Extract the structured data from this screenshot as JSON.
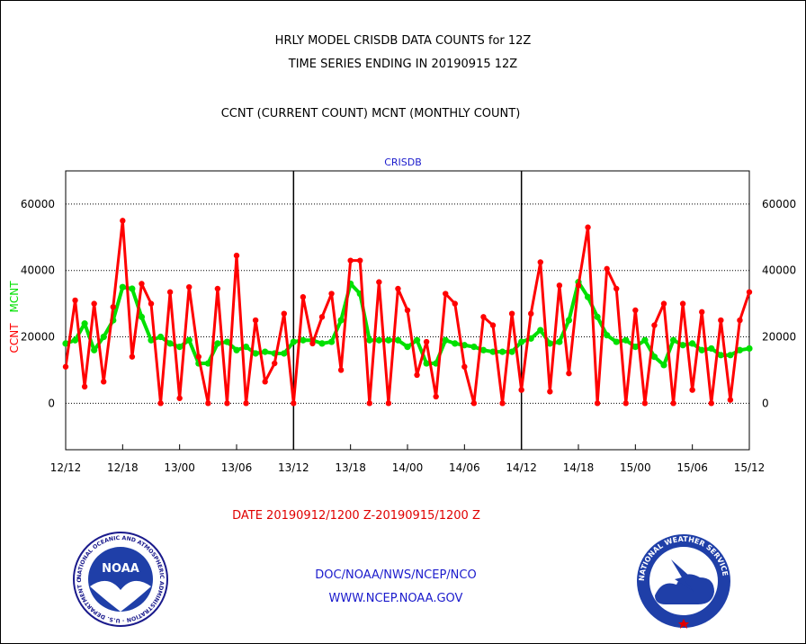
{
  "header": {
    "title_line1": "HRLY MODEL CRISDB DATA COUNTS for 12Z",
    "title_line2": "TIME SERIES ENDING IN 20190915 12Z",
    "subtitle": "CCNT (CURRENT COUNT) MCNT (MONTHLY COUNT)"
  },
  "footer": {
    "date_range": "DATE 20190912/1200 Z-20190915/1200 Z",
    "org_line": "DOC/NOAA/NWS/NCEP/NCO",
    "url_line": "WWW.NCEP.NOAA.GOV"
  },
  "logos": {
    "noaa_text": "NOAA",
    "noaa_ring": "NATIONAL OCEANIC AND ATMOSPHERIC ADMINISTRATION · U.S. DEPARTMENT OF COMMERCE",
    "nws_ring": "NATIONAL WEATHER SERVICE"
  },
  "colors": {
    "ccnt": "#ff0000",
    "mcnt": "#00e000",
    "title_blue": "#1a1acc",
    "grid": "#000000"
  },
  "chart_data": {
    "type": "line",
    "title": "CRISDB",
    "ylabel_left": [
      "CCNT",
      "MCNT"
    ],
    "ylim": [
      -14000,
      70000
    ],
    "yticks": [
      0,
      20000,
      40000,
      60000
    ],
    "ytick_labels": [
      "0",
      "20000",
      "40000",
      "60000"
    ],
    "xlim": [
      0,
      72
    ],
    "xticks": [
      0,
      6,
      12,
      18,
      24,
      30,
      36,
      42,
      48,
      54,
      60,
      66,
      72
    ],
    "xtick_labels": [
      "12/12",
      "12/18",
      "13/00",
      "13/06",
      "13/12",
      "13/18",
      "14/00",
      "14/06",
      "14/12",
      "14/18",
      "15/00",
      "15/06",
      "15/12"
    ],
    "day_separators": [
      24,
      48
    ],
    "grid": true,
    "series": [
      {
        "name": "CCNT",
        "values": [
          11000,
          31000,
          5000,
          30000,
          6500,
          29000,
          55000,
          14000,
          36000,
          30000,
          0,
          33500,
          1500,
          35000,
          14000,
          0,
          34500,
          0,
          44500,
          0,
          25000,
          6500,
          12000,
          27000,
          0,
          32000,
          18000,
          26000,
          33000,
          10000,
          43000,
          43000,
          0,
          36500,
          0,
          34500,
          28000,
          8500,
          18500,
          2000,
          33000,
          30000,
          11000,
          0,
          26000,
          23500,
          0,
          27000,
          4000,
          27000,
          42500,
          3500,
          35500,
          9000,
          35500,
          53000,
          0,
          40500,
          34500,
          0,
          28000,
          0,
          23500,
          30000,
          0,
          30000,
          4000,
          27500,
          0,
          25000,
          1000,
          25000,
          33500
        ]
      },
      {
        "name": "MCNT",
        "values": [
          18000,
          19000,
          24000,
          16000,
          20000,
          25000,
          35000,
          34500,
          26000,
          19000,
          20000,
          18000,
          17000,
          19000,
          12000,
          12000,
          18000,
          18500,
          16000,
          17000,
          15000,
          15500,
          15000,
          15000,
          18500,
          19000,
          19000,
          18000,
          18500,
          25000,
          36000,
          33000,
          19000,
          19000,
          19000,
          19000,
          17000,
          19000,
          12000,
          12000,
          19000,
          18000,
          17500,
          17000,
          16000,
          15500,
          15500,
          15500,
          18500,
          19500,
          22000,
          18000,
          18500,
          25000,
          36500,
          32000,
          26000,
          20500,
          18500,
          19000,
          17000,
          19000,
          14000,
          11500,
          19000,
          17500,
          18000,
          16000,
          16500,
          14500,
          14500,
          16000,
          16500
        ]
      }
    ]
  }
}
